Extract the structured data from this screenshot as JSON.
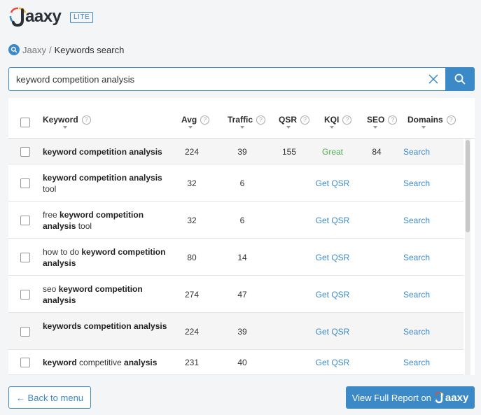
{
  "brand": {
    "name": "aaxy",
    "badge": "LITE"
  },
  "breadcrumb": {
    "root": "Jaaxy",
    "separator": "/",
    "current": "Keywords search"
  },
  "search": {
    "value": "keyword competition analysis",
    "placeholder": ""
  },
  "table": {
    "columns": [
      "Keyword",
      "Avg",
      "Traffic",
      "QSR",
      "KQI",
      "SEO",
      "Domains"
    ],
    "rows": [
      {
        "parts": [
          {
            "t": "keyword competition analysis",
            "b": true
          }
        ],
        "avg": "224",
        "traffic": "39",
        "qsr": "155",
        "kqi": "Great",
        "seo": "84",
        "domains": "Search"
      },
      {
        "parts": [
          {
            "t": "keyword competition analysis",
            "b": true
          },
          {
            "t": " tool",
            "b": false
          }
        ],
        "avg": "32",
        "traffic": "6",
        "qsr": "Get QSR",
        "kqi": "",
        "seo": "",
        "domains": "Search"
      },
      {
        "parts": [
          {
            "t": "free ",
            "b": false
          },
          {
            "t": "keyword competition analysis",
            "b": true
          },
          {
            "t": " tool",
            "b": false
          }
        ],
        "avg": "32",
        "traffic": "6",
        "qsr": "Get QSR",
        "kqi": "",
        "seo": "",
        "domains": "Search"
      },
      {
        "parts": [
          {
            "t": "how to do ",
            "b": false
          },
          {
            "t": "keyword competition analysis",
            "b": true
          }
        ],
        "avg": "80",
        "traffic": "14",
        "qsr": "Get QSR",
        "kqi": "",
        "seo": "",
        "domains": "Search"
      },
      {
        "parts": [
          {
            "t": "seo ",
            "b": false
          },
          {
            "t": "keyword competition analysis",
            "b": true
          }
        ],
        "avg": "274",
        "traffic": "47",
        "qsr": "Get QSR",
        "kqi": "",
        "seo": "",
        "domains": "Search"
      },
      {
        "parts": [
          {
            "t": "keywords competition analysis",
            "b": true
          }
        ],
        "avg": "224",
        "traffic": "39",
        "qsr": "Get QSR",
        "kqi": "",
        "seo": "",
        "domains": "Search"
      },
      {
        "parts": [
          {
            "t": "keyword",
            "b": true
          },
          {
            "t": " competitive ",
            "b": false
          },
          {
            "t": "analysis",
            "b": true
          }
        ],
        "avg": "231",
        "traffic": "40",
        "qsr": "Get QSR",
        "kqi": "",
        "seo": "",
        "domains": "Search"
      }
    ]
  },
  "footer": {
    "back_label": "← Back to menu",
    "full_report_label": "View Full Report on",
    "full_report_brand": "aaxy"
  },
  "colors": {
    "accent": "#3c89c8",
    "great": "#4caf50"
  }
}
